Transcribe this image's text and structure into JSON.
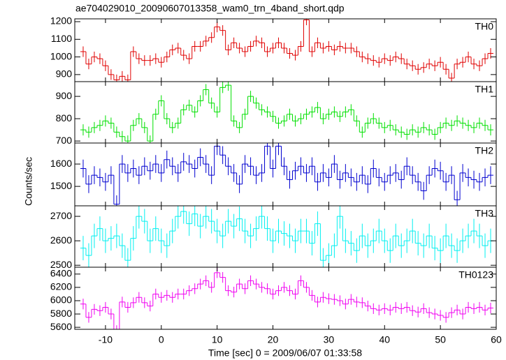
{
  "chart_data": [
    {
      "type": "line",
      "title": "ae704029010_20090607013358_wam0_trn_4band_short.qdp",
      "label": "TH0",
      "color": "#e00000",
      "error": 30,
      "x": [
        -14,
        -13,
        -12,
        -11,
        -10,
        -9,
        -8,
        -7,
        -6,
        -5,
        -4,
        -3,
        -2,
        -1,
        0,
        1,
        2,
        3,
        4,
        5,
        6,
        7,
        8,
        9,
        10,
        11,
        12,
        13,
        14,
        15,
        16,
        17,
        18,
        19,
        20,
        21,
        22,
        23,
        24,
        25,
        26,
        27,
        28,
        29,
        30,
        31,
        32,
        33,
        34,
        35,
        36,
        37,
        38,
        39,
        40,
        41,
        42,
        43,
        44,
        45,
        46,
        47,
        48,
        49,
        50,
        51,
        52,
        53,
        54,
        55,
        56,
        57,
        58,
        59
      ],
      "values": [
        1030,
        960,
        1000,
        990,
        950,
        900,
        870,
        890,
        870,
        1030,
        990,
        980,
        980,
        990,
        970,
        1000,
        1040,
        1050,
        1010,
        990,
        1060,
        1060,
        1090,
        1110,
        1170,
        1150,
        1040,
        1080,
        1050,
        1030,
        1060,
        1090,
        1080,
        1030,
        1050,
        1080,
        1050,
        1020,
        1010,
        1060,
        1210,
        1030,
        1080,
        1050,
        1060,
        1040,
        1060,
        1050,
        1050,
        1030,
        1000,
        990,
        980,
        970,
        990,
        980,
        1000,
        990,
        960,
        950,
        930,
        940,
        960,
        950,
        970,
        930,
        880,
        960,
        970,
        1000,
        960,
        950,
        990,
        1020
      ],
      "xlim": [
        -15.5,
        60
      ],
      "ylim": [
        860,
        1216
      ],
      "yticks": [
        900,
        1000,
        1100,
        1200
      ]
    },
    {
      "type": "line",
      "label": "TH1",
      "color": "#00e000",
      "error": 25,
      "x": [
        -14,
        -13,
        -12,
        -11,
        -10,
        -9,
        -8,
        -7,
        -6,
        -5,
        -4,
        -3,
        -2,
        -1,
        0,
        1,
        2,
        3,
        4,
        5,
        6,
        7,
        8,
        9,
        10,
        11,
        12,
        13,
        14,
        15,
        16,
        17,
        18,
        19,
        20,
        21,
        22,
        23,
        24,
        25,
        26,
        27,
        28,
        29,
        30,
        31,
        32,
        33,
        34,
        35,
        36,
        37,
        38,
        39,
        40,
        41,
        42,
        43,
        44,
        45,
        46,
        47,
        48,
        49,
        50,
        51,
        52,
        53,
        54,
        55,
        56,
        57,
        58,
        59
      ],
      "values": [
        750,
        740,
        760,
        770,
        790,
        780,
        740,
        720,
        700,
        770,
        800,
        760,
        700,
        820,
        880,
        800,
        760,
        780,
        840,
        860,
        830,
        880,
        930,
        870,
        830,
        940,
        950,
        790,
        760,
        820,
        900,
        870,
        840,
        830,
        810,
        780,
        790,
        820,
        790,
        800,
        820,
        830,
        850,
        800,
        820,
        830,
        810,
        830,
        840,
        790,
        740,
        780,
        800,
        780,
        760,
        770,
        750,
        740,
        730,
        750,
        740,
        760,
        750,
        730,
        760,
        780,
        770,
        790,
        780,
        770,
        760,
        780,
        770,
        750
      ],
      "xlim": [
        -15.5,
        60
      ],
      "ylim": [
        691,
        966
      ],
      "yticks": [
        700,
        800,
        900
      ]
    },
    {
      "type": "line",
      "label": "TH2",
      "ylabel": "Counts/sec",
      "color": "#0000d0",
      "error": 40,
      "x": [
        -14,
        -13,
        -12,
        -11,
        -10,
        -9,
        -8,
        -7,
        -6,
        -5,
        -4,
        -3,
        -2,
        -1,
        0,
        1,
        2,
        3,
        4,
        5,
        6,
        7,
        8,
        9,
        10,
        11,
        12,
        13,
        14,
        15,
        16,
        17,
        18,
        19,
        20,
        21,
        22,
        23,
        24,
        25,
        26,
        27,
        28,
        29,
        30,
        31,
        32,
        33,
        34,
        35,
        36,
        37,
        38,
        39,
        40,
        41,
        42,
        43,
        44,
        45,
        46,
        47,
        48,
        49,
        50,
        51,
        52,
        53,
        54,
        55,
        56,
        57,
        58,
        59
      ],
      "values": [
        1580,
        1510,
        1550,
        1540,
        1520,
        1550,
        1420,
        1600,
        1560,
        1580,
        1550,
        1590,
        1570,
        1600,
        1560,
        1620,
        1590,
        1560,
        1610,
        1600,
        1580,
        1630,
        1600,
        1550,
        1680,
        1640,
        1590,
        1560,
        1510,
        1600,
        1590,
        1550,
        1560,
        1680,
        1580,
        1680,
        1590,
        1530,
        1570,
        1590,
        1560,
        1590,
        1520,
        1560,
        1540,
        1600,
        1530,
        1560,
        1540,
        1520,
        1550,
        1510,
        1580,
        1540,
        1520,
        1550,
        1560,
        1530,
        1590,
        1550,
        1520,
        1480,
        1550,
        1580,
        1570,
        1520,
        1550,
        1440,
        1560,
        1540,
        1530,
        1520,
        1540,
        1550
      ],
      "xlim": [
        -15.5,
        60
      ],
      "ylim": [
        1413,
        1694
      ],
      "yticks": [
        1500,
        1600
      ]
    },
    {
      "type": "line",
      "label": "TH3",
      "color": "#00f0f0",
      "error": 50,
      "x": [
        -14,
        -13,
        -12,
        -11,
        -10,
        -9,
        -8,
        -7,
        -6,
        -5,
        -4,
        -3,
        -2,
        -1,
        0,
        1,
        2,
        3,
        4,
        5,
        6,
        7,
        8,
        9,
        10,
        11,
        12,
        13,
        14,
        15,
        16,
        17,
        18,
        19,
        20,
        21,
        22,
        23,
        24,
        25,
        26,
        27,
        28,
        29,
        30,
        31,
        32,
        33,
        34,
        35,
        36,
        37,
        38,
        39,
        40,
        41,
        42,
        43,
        44,
        45,
        46,
        47,
        48,
        49,
        50,
        51,
        52,
        53,
        54,
        55,
        56,
        57,
        58,
        59
      ],
      "values": [
        2570,
        2540,
        2620,
        2650,
        2600,
        2610,
        2620,
        2580,
        2520,
        2610,
        2700,
        2680,
        2600,
        2650,
        2600,
        2580,
        2640,
        2700,
        2720,
        2670,
        2710,
        2660,
        2700,
        2680,
        2640,
        2620,
        2680,
        2660,
        2690,
        2640,
        2620,
        2650,
        2700,
        2650,
        2600,
        2640,
        2630,
        2620,
        2600,
        2640,
        2640,
        2590,
        2670,
        2520,
        2540,
        2580,
        2700,
        2600,
        2590,
        2560,
        2620,
        2580,
        2600,
        2640,
        2600,
        2560,
        2620,
        2580,
        2600,
        2640,
        2590,
        2580,
        2620,
        2570,
        2560,
        2620,
        2580,
        2560,
        2600,
        2620,
        2640,
        2620,
        2580,
        2600
      ],
      "xlim": [
        -15.5,
        60
      ],
      "ylim": [
        2492,
        2743
      ],
      "yticks": [
        2500,
        2600,
        2700
      ]
    },
    {
      "type": "line",
      "label": "TH0123",
      "color": "#f000f0",
      "error": 80,
      "x": [
        -14,
        -13,
        -12,
        -11,
        -10,
        -9,
        -8,
        -7,
        -6,
        -5,
        -4,
        -3,
        -2,
        -1,
        0,
        1,
        2,
        3,
        4,
        5,
        6,
        7,
        8,
        9,
        10,
        11,
        12,
        13,
        14,
        15,
        16,
        17,
        18,
        19,
        20,
        21,
        22,
        23,
        24,
        25,
        26,
        27,
        28,
        29,
        30,
        31,
        32,
        33,
        34,
        35,
        36,
        37,
        38,
        39,
        40,
        41,
        42,
        43,
        44,
        45,
        46,
        47,
        48,
        49,
        50,
        51,
        52,
        53,
        54,
        55,
        56,
        57,
        58,
        59
      ],
      "values": [
        5950,
        5750,
        5870,
        5850,
        5900,
        5800,
        5550,
        5980,
        5900,
        5970,
        6050,
        5970,
        5920,
        6100,
        6050,
        6080,
        6050,
        6100,
        6100,
        6150,
        6180,
        6250,
        6300,
        6200,
        6420,
        6350,
        6150,
        6130,
        6250,
        6180,
        6300,
        6250,
        6200,
        6180,
        6100,
        6150,
        6200,
        6150,
        6100,
        6300,
        6200,
        6080,
        5980,
        6050,
        6030,
        6020,
        6000,
        5950,
        6020,
        5980,
        5970,
        5920,
        5880,
        5860,
        5880,
        5860,
        5900,
        5880,
        5900,
        5850,
        5830,
        5880,
        5820,
        5800,
        5780,
        5750,
        5820,
        5860,
        5800,
        5900,
        5880,
        5900,
        5860,
        5890
      ],
      "xlim": [
        -15.5,
        60
      ],
      "ylim": [
        5570,
        6503
      ],
      "yticks": [
        5600,
        5800,
        6000,
        6200,
        6400
      ],
      "xticks": [
        -10,
        0,
        10,
        20,
        30,
        40,
        50,
        60
      ],
      "xlabel": "Time [sec] 0 = 2009/06/07 01:33:58"
    }
  ]
}
